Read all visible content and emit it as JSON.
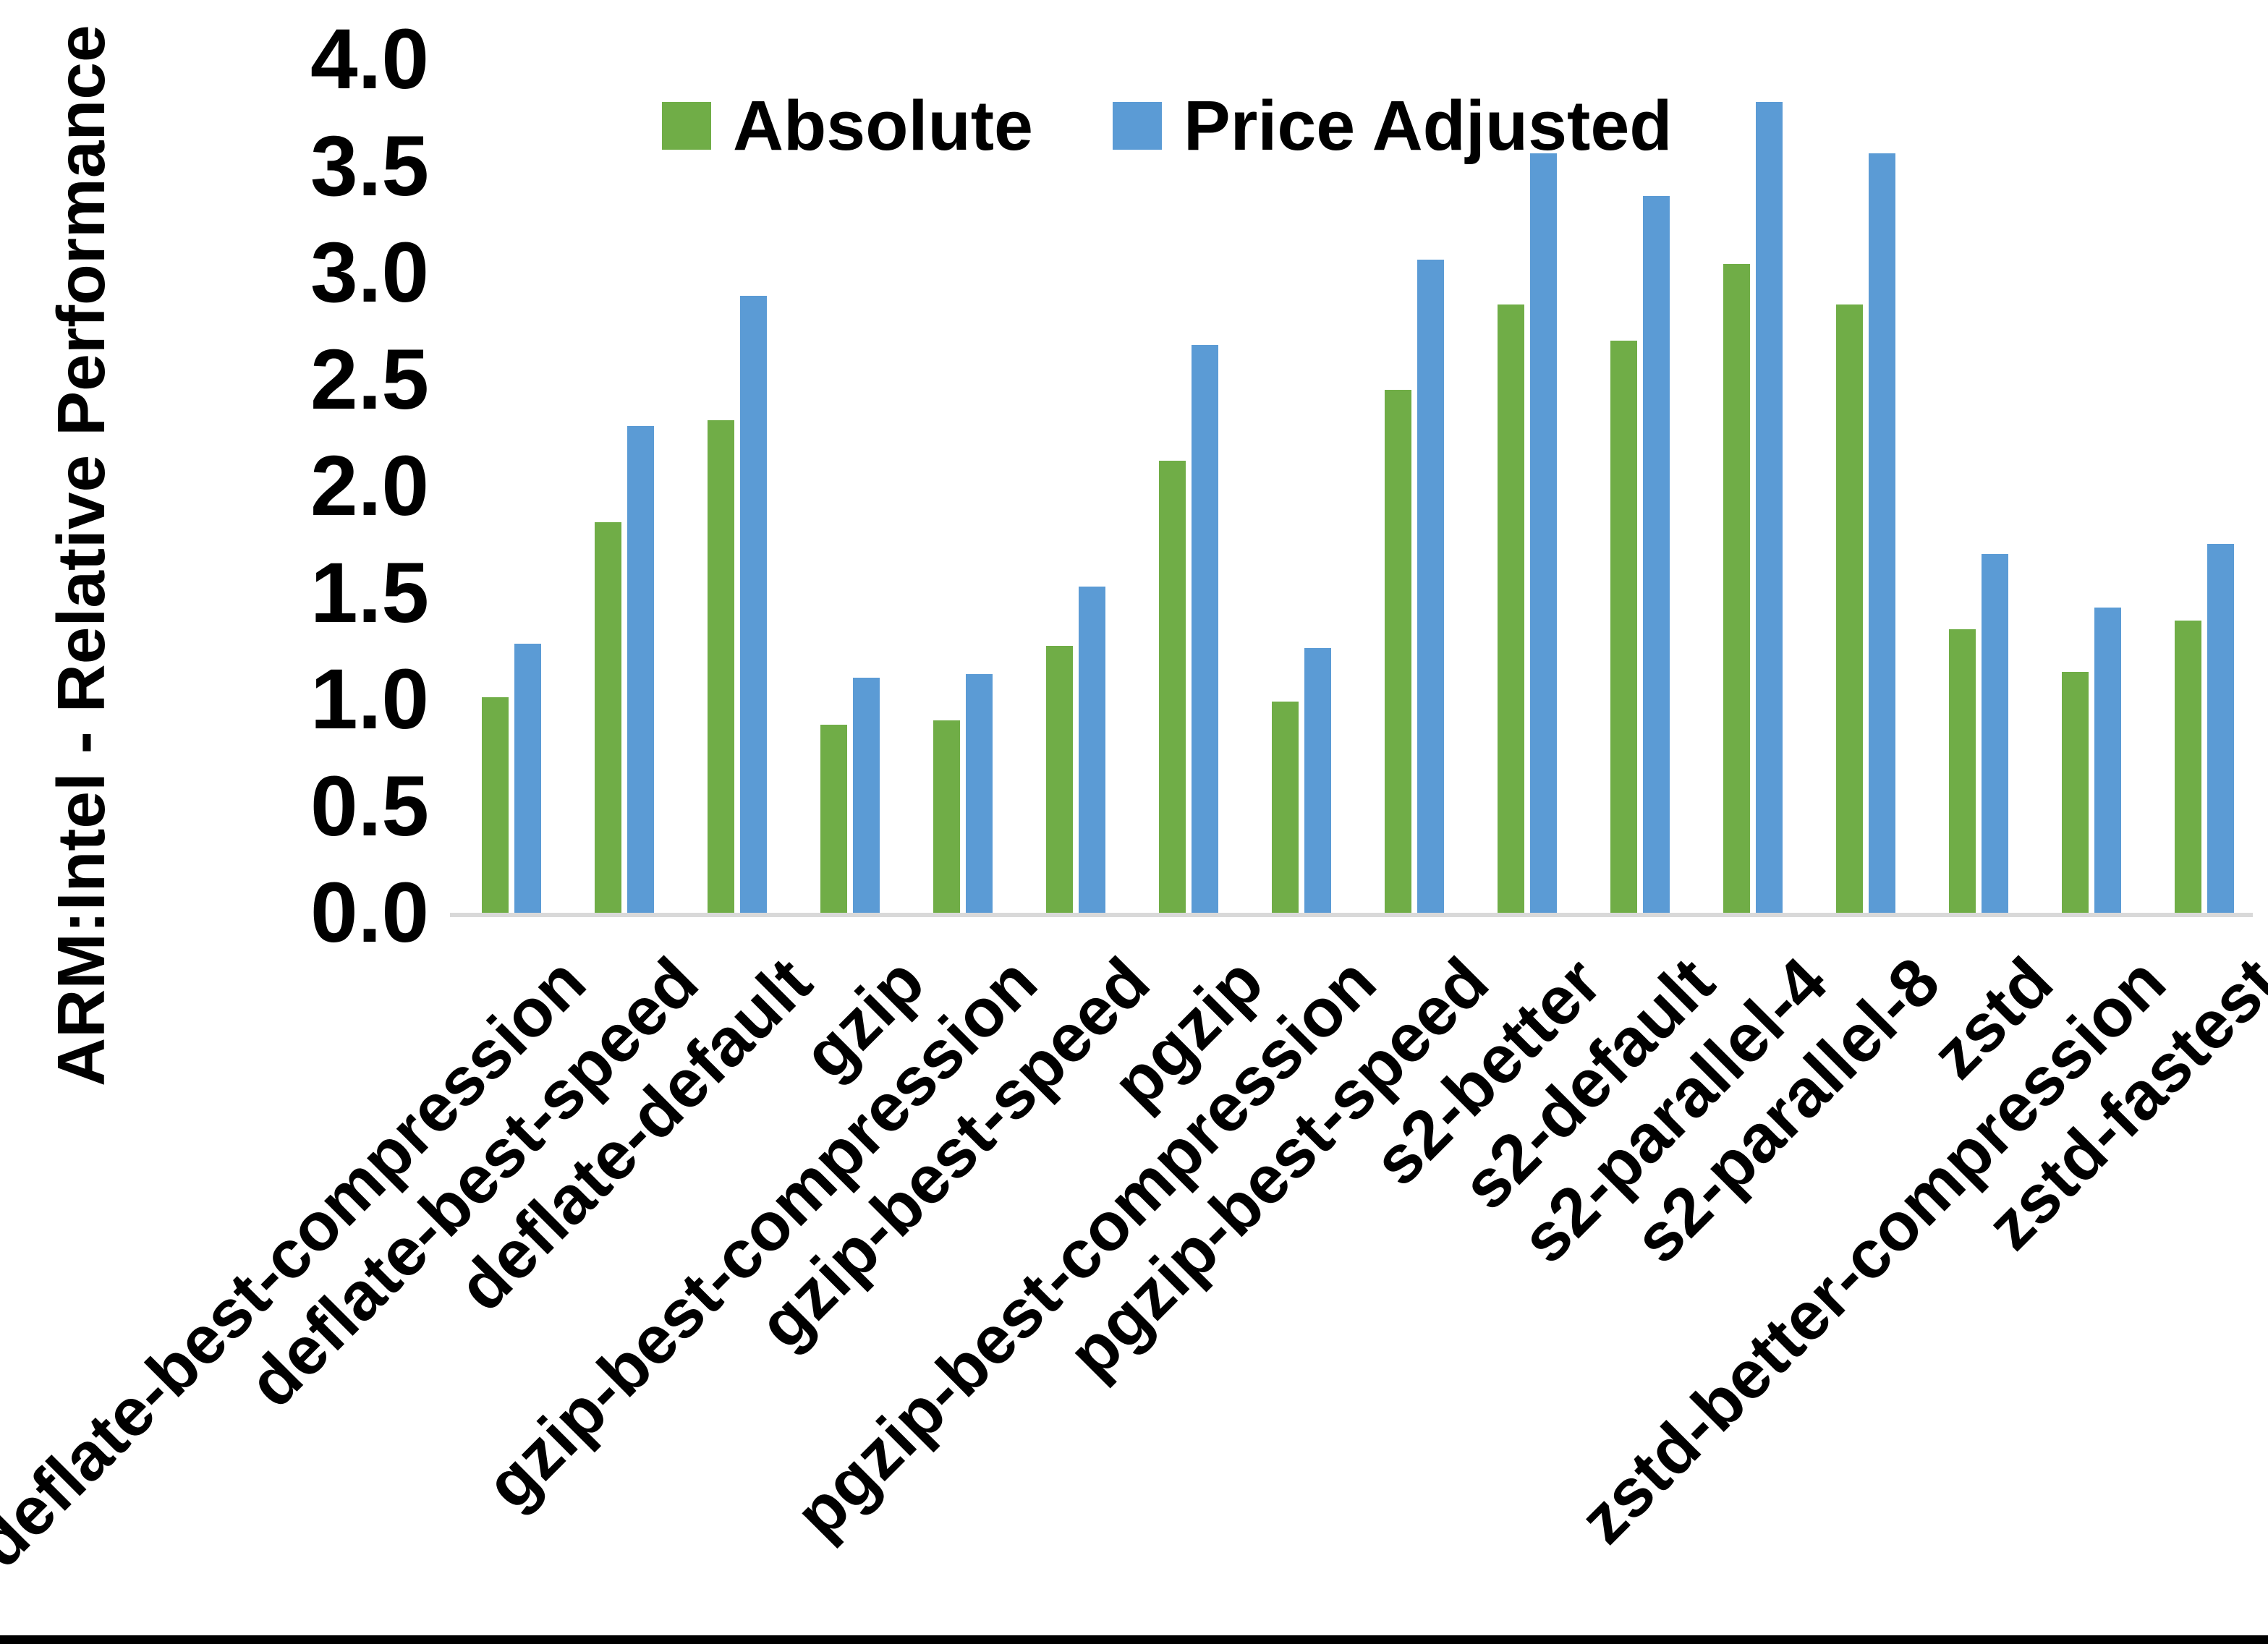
{
  "chart_data": {
    "type": "bar",
    "title": "",
    "xlabel": "",
    "ylabel": "ARM:Intel - Relative Performance",
    "ylim": [
      0.0,
      4.0
    ],
    "ytick_step": 0.5,
    "yticks": [
      "0.0",
      "0.5",
      "1.0",
      "1.5",
      "2.0",
      "2.5",
      "3.0",
      "3.5",
      "4.0"
    ],
    "grid": false,
    "legend_position": "top-center",
    "axis_line_color": "#d9d9d9",
    "categories": [
      "deflate-best-compression",
      "deflate-best-speed",
      "deflate-default",
      "gzip",
      "gzip-best-compression",
      "gzip-best-speed",
      "pgzip",
      "pgzip-best-compression",
      "pgzip-best-speed",
      "s2-better",
      "s2-default",
      "s2-parallel-4",
      "s2-parallel-8",
      "zstd",
      "zstd-better-compression",
      "zstd-fastest"
    ],
    "series": [
      {
        "name": "Absolute",
        "color": "#70AD47",
        "values": [
          1.01,
          1.83,
          2.31,
          0.88,
          0.9,
          1.25,
          2.12,
          0.99,
          2.45,
          2.85,
          2.68,
          3.04,
          2.85,
          1.33,
          1.13,
          1.37
        ]
      },
      {
        "name": "Price Adjusted",
        "color": "#5B9BD5",
        "values": [
          1.26,
          2.28,
          2.89,
          1.1,
          1.12,
          1.53,
          2.66,
          1.24,
          3.06,
          3.56,
          3.36,
          3.8,
          3.56,
          1.68,
          1.43,
          1.73
        ]
      }
    ]
  },
  "frame": {
    "bottom_border_color": "#000000"
  }
}
